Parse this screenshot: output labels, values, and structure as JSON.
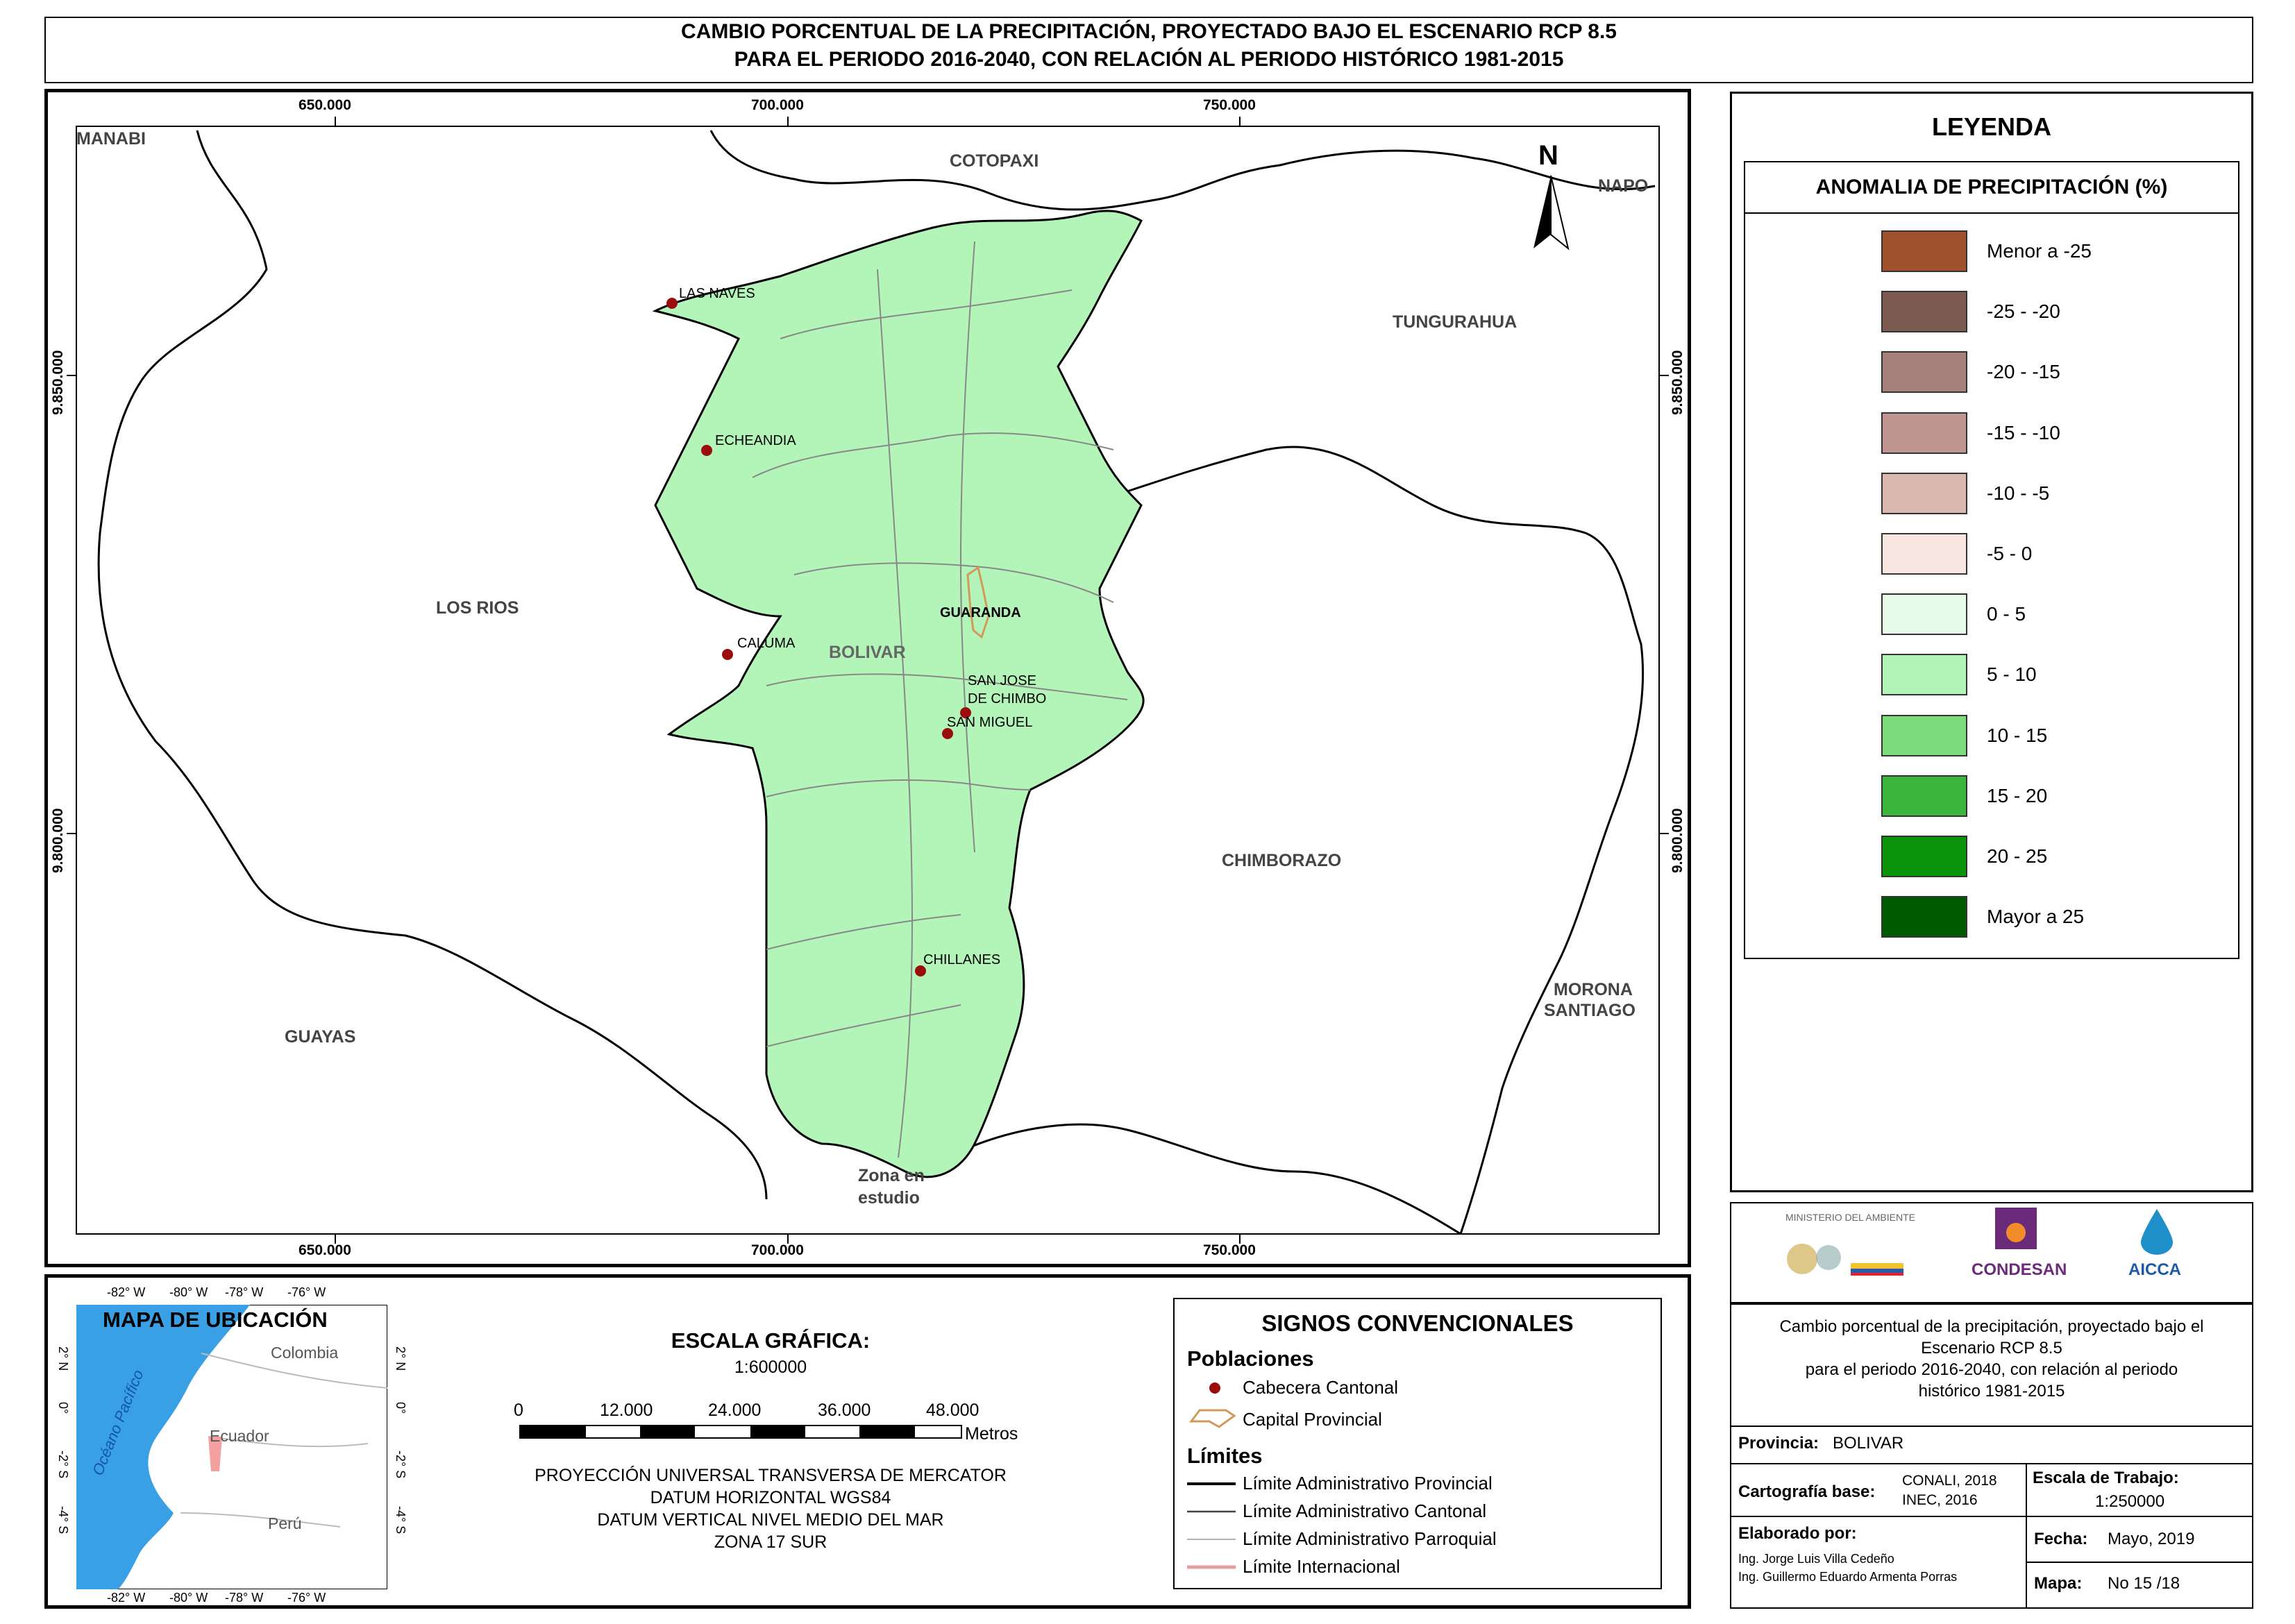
{
  "title": {
    "line1": "CAMBIO PORCENTUAL DE LA PRECIPITACIÓN, PROYECTADO BAJO EL ESCENARIO RCP 8.5",
    "line2": "PARA EL PERIODO 2016-2040, CON RELACIÓN AL PERIODO HISTÓRICO 1981-2015"
  },
  "map": {
    "x_ticks": [
      "650.000",
      "700.000",
      "750.000"
    ],
    "y_ticks": [
      "9.850.000",
      "9.800.000"
    ],
    "north_label": "N",
    "regions": {
      "manabi": "MANABI",
      "cotopaxi": "COTOPAXI",
      "napo": "NAPO",
      "tungurahua": "TUNGURAHUA",
      "los_rios": "LOS RIOS",
      "bolivar": "BOLIVAR",
      "chimborazo": "CHIMBORAZO",
      "guayas": "GUAYAS",
      "morona_line1": "MORONA",
      "morona_line2": "SANTIAGO",
      "zona_line1": "Zona en",
      "zona_line2": "estudio"
    },
    "towns": {
      "las_naves": "LAS NAVES",
      "echeandia": "ECHEANDIA",
      "guaranda": "GUARANDA",
      "caluma": "CALUMA",
      "san_jose_line1": "SAN JOSE",
      "san_jose_line2": "DE CHIMBO",
      "san_miguel": "SAN MIGUEL",
      "chillanes": "CHILLANES"
    },
    "colors": {
      "province_fill": "#b3f5b8",
      "town_dot": "#9b0d0d",
      "capital_outline": "#d29a5a"
    }
  },
  "legend": {
    "title": "LEYENDA",
    "subtitle": "ANOMALIA DE PRECIPITACIÓN (%)",
    "items": [
      {
        "label": "Menor a -25",
        "color": "#a0522d"
      },
      {
        "label": "-25 - -20",
        "color": "#7d5a50"
      },
      {
        "label": "-20 - -15",
        "color": "#a6807a"
      },
      {
        "label": "-15 - -10",
        "color": "#bf968f"
      },
      {
        "label": "-10 - -5",
        "color": "#d9b8ad"
      },
      {
        "label": "-5 - 0",
        "color": "#f8e6e1"
      },
      {
        "label": "0 - 5",
        "color": "#e8fbe8"
      },
      {
        "label": "5 - 10",
        "color": "#b3f5b8"
      },
      {
        "label": "10 - 15",
        "color": "#7cdc7c"
      },
      {
        "label": "15 - 20",
        "color": "#3cb53c"
      },
      {
        "label": "20 - 25",
        "color": "#0b920b"
      },
      {
        "label": "Mayor a 25",
        "color": "#005a00"
      }
    ]
  },
  "location_map": {
    "title": "MAPA DE UBICACIÓN",
    "top_ticks": [
      "-82° W",
      "-80° W",
      "-78° W",
      "-76° W"
    ],
    "bottom_ticks": [
      "-82° W",
      "-80° W",
      "-78° W",
      "-76° W"
    ],
    "side_ticks": [
      "2° N",
      "0°",
      "-2° S",
      "-4° S"
    ],
    "ocean": "Océano Pacífico",
    "colombia": "Colombia",
    "ecuador": "Ecuador",
    "peru": "Perú",
    "ocean_color": "#3aa0e6"
  },
  "scale": {
    "title": "ESCALA GRÁFICA:",
    "ratio": "1:600000",
    "ticks": [
      "0",
      "12.000",
      "24.000",
      "36.000",
      "48.000"
    ],
    "unit": "Metros",
    "projection": [
      "PROYECCIÓN UNIVERSAL TRANSVERSA DE MERCATOR",
      "DATUM HORIZONTAL WGS84",
      "DATUM VERTICAL NIVEL MEDIO DEL MAR",
      "ZONA 17 SUR"
    ]
  },
  "signs": {
    "title": "SIGNOS CONVENCIONALES",
    "poblaciones": "Poblaciones",
    "cabecera": "Cabecera Cantonal",
    "capital": "Capital Provincial",
    "limites": "Límites",
    "lim_provincial": "Límite Administrativo Provincial",
    "lim_cantonal": "Límite Administrativo Cantonal",
    "lim_parroquial": "Límite Administrativo Parroquial",
    "lim_internacional": "Límite Internacional"
  },
  "logos": {
    "ministerio": "MINISTERIO DEL AMBIENTE",
    "condesan": "CONDESAN",
    "aicca": "AICCA"
  },
  "info": {
    "description": [
      "Cambio porcentual de la precipitación, proyectado bajo el",
      "Escenario RCP 8.5",
      "para el periodo 2016-2040, con relación al periodo",
      "histórico 1981-2015"
    ],
    "provincia_label": "Provincia:",
    "provincia_value": "BOLIVAR",
    "cartografia_label": "Cartografía base:",
    "cartografia_value1": "CONALI, 2018",
    "cartografia_value2": "INEC, 2016",
    "escala_label": "Escala de Trabajo:",
    "escala_value": "1:250000",
    "elaborado_label": "Elaborado por:",
    "autor1": "Ing. Jorge Luis Villa Cedeño",
    "autor2": "Ing. Guillermo Eduardo Armenta Porras",
    "fecha_label": "Fecha:",
    "fecha_value": "Mayo, 2019",
    "mapa_label": "Mapa:",
    "mapa_value": "No 15 /18"
  }
}
